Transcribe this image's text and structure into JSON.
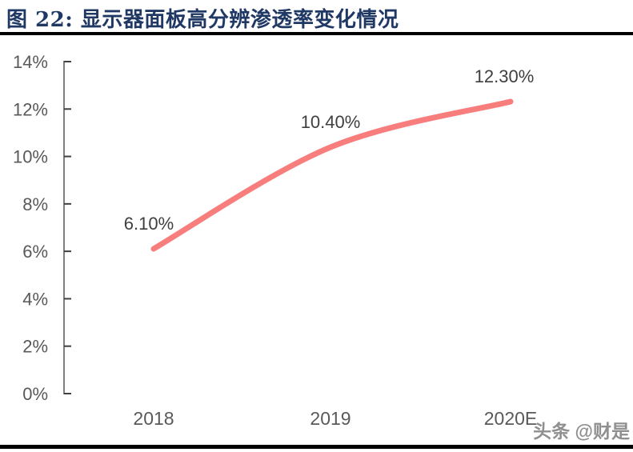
{
  "figure": {
    "title": "图 22: 显示器面板高分辨渗透率变化情况",
    "title_color": "#1F3864"
  },
  "watermark": {
    "text": "头条 @财是"
  },
  "chart_data": {
    "type": "line",
    "title": "显示器面板高分辨渗透率变化情况",
    "categories": [
      "2018",
      "2019",
      "2020E"
    ],
    "values": [
      6.1,
      10.4,
      12.3
    ],
    "data_labels": [
      "6.10%",
      "10.40%",
      "12.30%"
    ],
    "xlabel": "",
    "ylabel": "",
    "ylim": [
      0,
      14
    ],
    "y_tick_step": 2,
    "y_tick_labels": [
      "0%",
      "2%",
      "4%",
      "6%",
      "8%",
      "10%",
      "12%",
      "14%"
    ],
    "grid": false,
    "legend": "none",
    "colors": {
      "line": "#F87D7D",
      "data_label": "#3F3F3F",
      "axis_line": "#7F7F7F",
      "tick": "#404040",
      "tick_label": "#595959"
    }
  }
}
